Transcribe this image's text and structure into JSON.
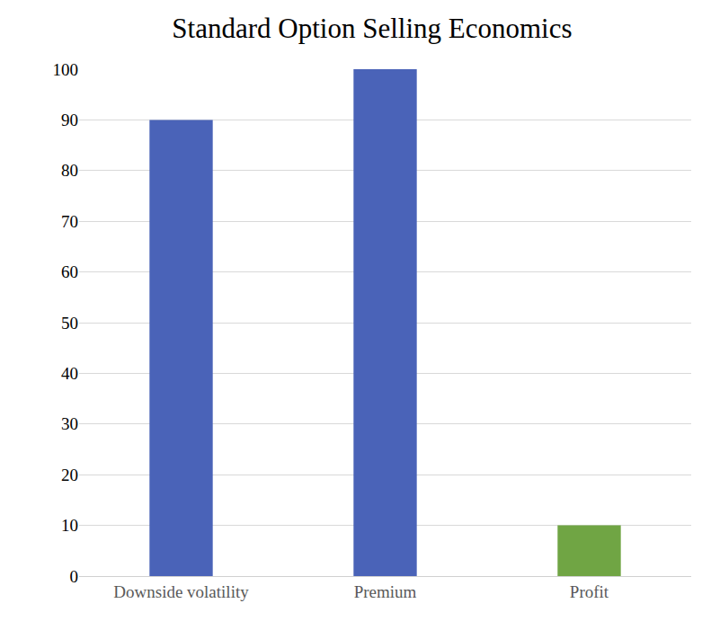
{
  "chart_data": {
    "type": "bar",
    "title": "Standard Option Selling Economics",
    "categories": [
      "Downside volatility",
      "Premium",
      "Profit"
    ],
    "values": [
      90,
      100,
      10
    ],
    "colors": [
      "#4a63b8",
      "#4a63b8",
      "#70a544"
    ],
    "ylim": [
      0,
      100
    ],
    "yticks": [
      0,
      10,
      20,
      30,
      40,
      50,
      60,
      70,
      80,
      90,
      100
    ],
    "grid": true
  }
}
